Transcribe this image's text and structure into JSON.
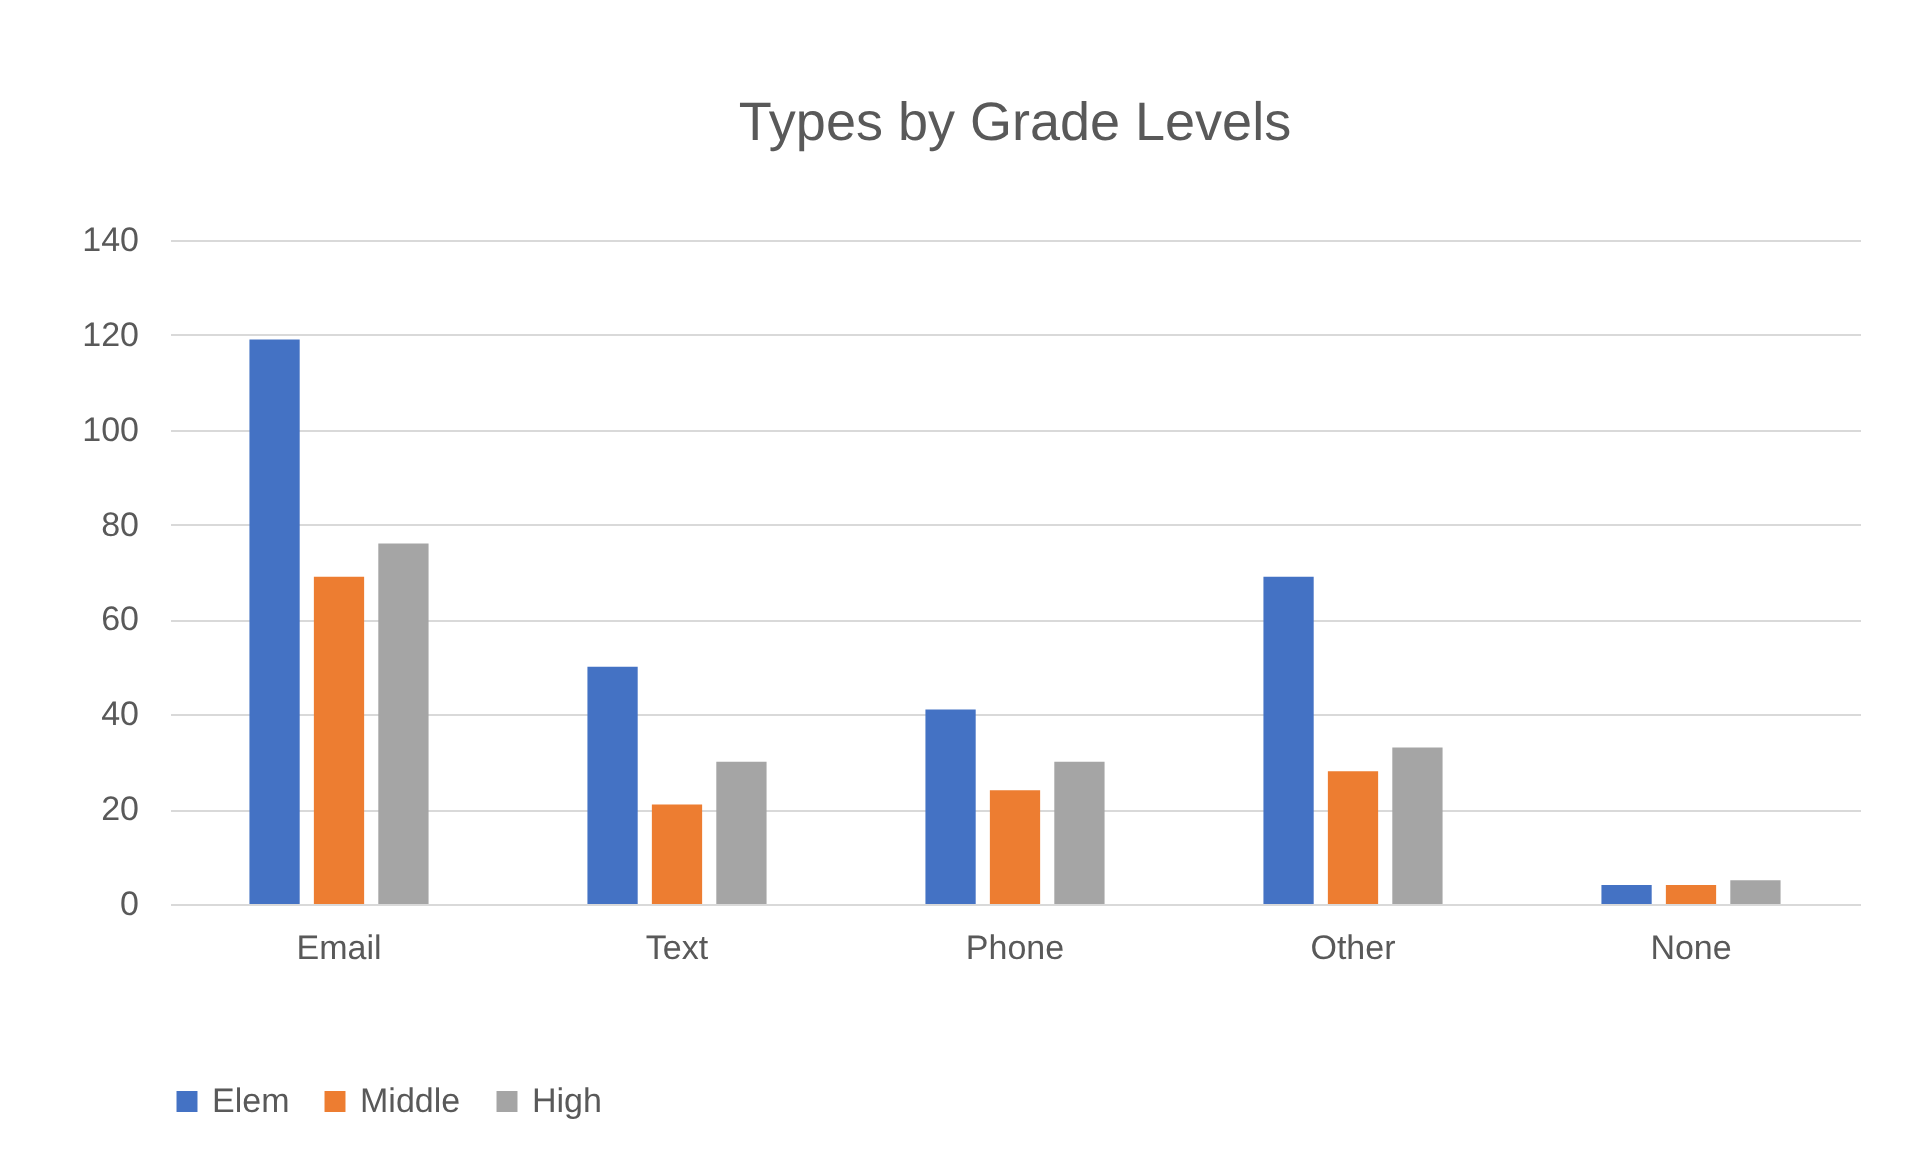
{
  "chart_data": {
    "type": "bar",
    "title": "Types by Grade Levels",
    "categories": [
      "Email",
      "Text",
      "Phone",
      "Other",
      "None"
    ],
    "series": [
      {
        "name": "Elem",
        "color": "#4472c4",
        "values": [
          119,
          50,
          41,
          69,
          4
        ]
      },
      {
        "name": "Middle",
        "color": "#ed7d31",
        "values": [
          69,
          21,
          24,
          28,
          4
        ]
      },
      {
        "name": "High",
        "color": "#a5a5a5",
        "values": [
          76,
          30,
          30,
          33,
          5
        ]
      }
    ],
    "ylim": [
      0,
      140
    ],
    "yticks": [
      0,
      20,
      40,
      60,
      80,
      100,
      120,
      140
    ],
    "grid": true,
    "legend": "bottom"
  }
}
